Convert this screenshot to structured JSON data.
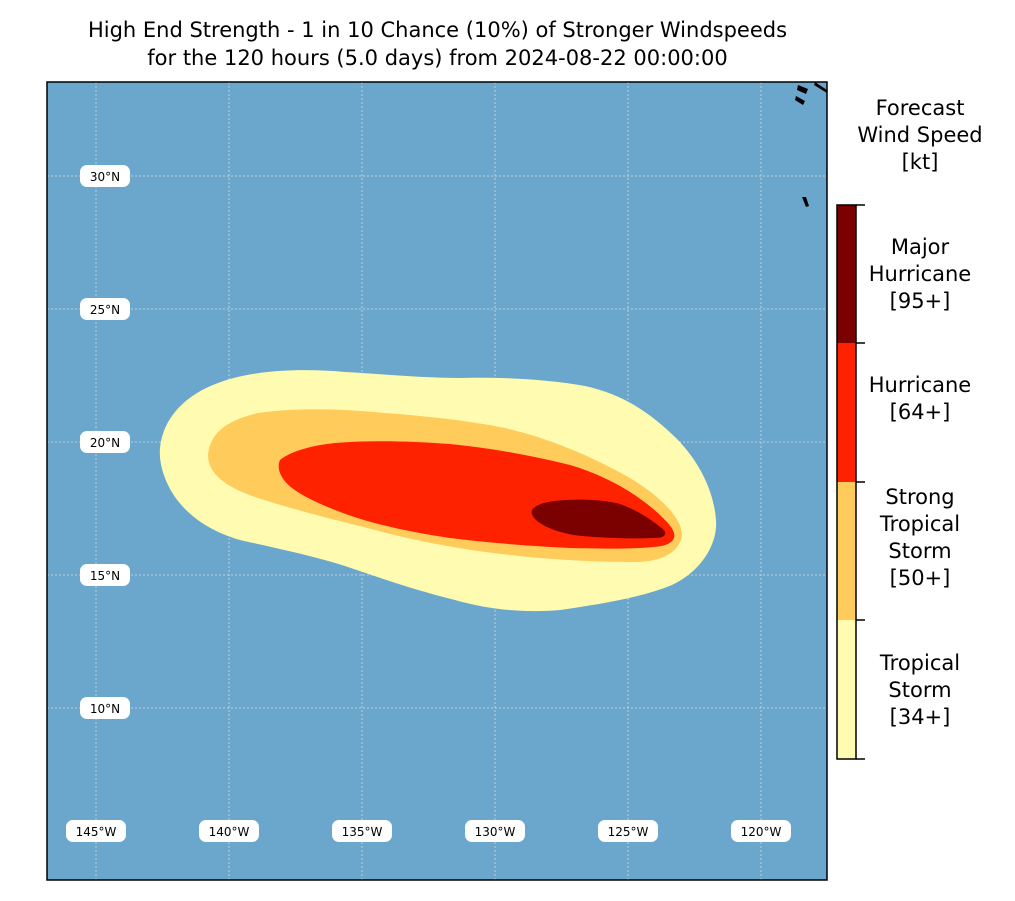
{
  "title": {
    "line1": "High End Strength - 1 in 10 Chance (10%) of Stronger Windspeeds",
    "line2": "for the 120 hours (5.0 days) from 2024-08-22 00:00:00"
  },
  "map": {
    "ocean_color": "#6ba6cc",
    "latitude_labels": [
      "30°N",
      "25°N",
      "20°N",
      "15°N",
      "10°N"
    ],
    "longitude_labels": [
      "145°W",
      "140°W",
      "135°W",
      "130°W",
      "125°W",
      "120°W"
    ]
  },
  "legend": {
    "title_lines": [
      "Forecast",
      "Wind Speed",
      "[kt]"
    ],
    "categories": [
      {
        "lines": [
          "Major",
          "Hurricane",
          "[95+]"
        ],
        "color": "#7b0000"
      },
      {
        "lines": [
          "Hurricane",
          "[64+]"
        ],
        "color": "#ff2200"
      },
      {
        "lines": [
          "Strong",
          "Tropical",
          "Storm",
          "[50+]"
        ],
        "color": "#ffcc5c"
      },
      {
        "lines": [
          "Tropical",
          "Storm",
          "[34+]"
        ],
        "color": "#fffcb2"
      }
    ]
  }
}
